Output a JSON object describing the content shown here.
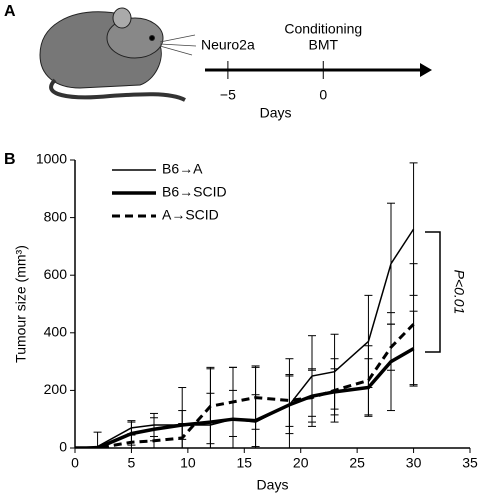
{
  "chart_data": [
    {
      "type": "timeline",
      "panel": "A",
      "xlabel": "Days",
      "xlim": [
        -6.2,
        5.7
      ],
      "xticks": [
        {
          "value": -5,
          "label": "−5"
        },
        0
      ],
      "annotations": [
        {
          "x": -5,
          "lines": [
            "Neuro2a"
          ]
        },
        {
          "x": 0,
          "lines": [
            "Conditioning",
            "BMT"
          ]
        }
      ],
      "color": "#000000"
    },
    {
      "type": "line",
      "panel": "B",
      "xlabel": "Days",
      "ylabel": "Tumour size (mm³)",
      "xlim": [
        0,
        35
      ],
      "ylim": [
        0,
        1000
      ],
      "xticks": [
        0,
        5,
        10,
        15,
        20,
        25,
        30,
        35
      ],
      "yticks": [
        0,
        200,
        400,
        600,
        800,
        1000
      ],
      "x": [
        0,
        2,
        5,
        7,
        9.5,
        12,
        14,
        16,
        19,
        21,
        23,
        26,
        28,
        30
      ],
      "legend": "upper-left",
      "series": [
        {
          "name": "B6→A",
          "color": "#000000",
          "linestyle": "solid",
          "linewidth": 1.5,
          "values": [
            0,
            5,
            70,
            80,
            80,
            80,
            100,
            90,
            150,
            250,
            265,
            370,
            640,
            760
          ],
          "errors": [
            0,
            50,
            25,
            40,
            130,
            200,
            180,
            190,
            160,
            140,
            130,
            160,
            210,
            230
          ]
        },
        {
          "name": "B6→SCID",
          "color": "#000000",
          "linestyle": "solid",
          "linewidth": 3.5,
          "values": [
            0,
            0,
            50,
            65,
            80,
            90,
            100,
            95,
            150,
            180,
            195,
            210,
            300,
            345
          ],
          "errors": [
            0,
            0,
            40,
            40,
            50,
            100,
            100,
            90,
            100,
            90,
            80,
            100,
            170,
            130
          ]
        },
        {
          "name": "A→SCID",
          "color": "#000000",
          "linestyle": "dashed",
          "linewidth": 3,
          "values": [
            0,
            0,
            20,
            25,
            35,
            145,
            160,
            175,
            165,
            175,
            200,
            235,
            350,
            430
          ],
          "errors": [
            0,
            0,
            30,
            40,
            50,
            130,
            120,
            110,
            90,
            100,
            110,
            120,
            80,
            210
          ]
        }
      ],
      "annotation": "P<0.01"
    }
  ]
}
